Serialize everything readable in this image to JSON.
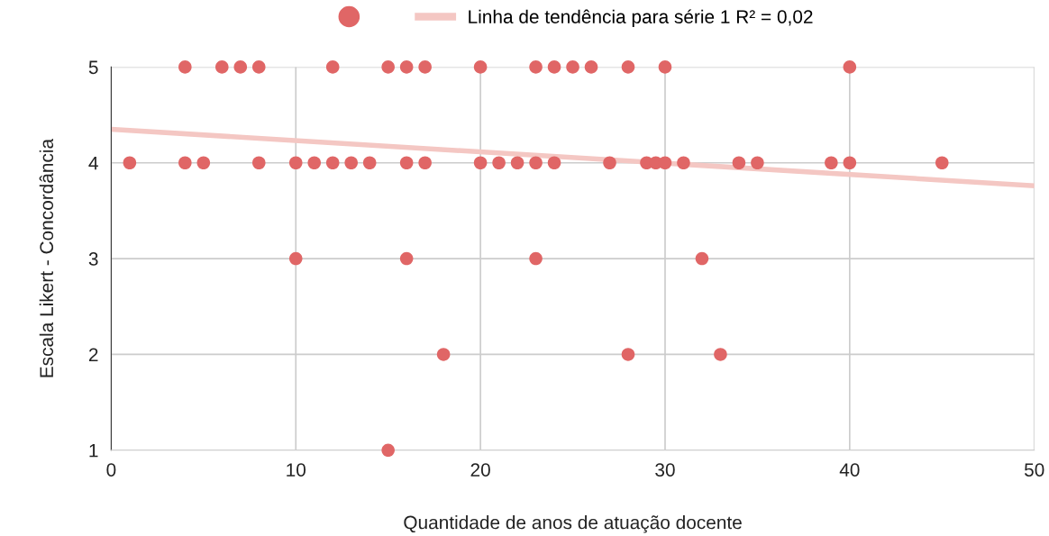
{
  "chart_data": {
    "type": "scatter",
    "xlabel": "Quantidade de anos de atuação docente",
    "ylabel": "Escala Likert - Concordância",
    "series": [
      {
        "color": "#e06666",
        "marker": "circle",
        "x": [
          4,
          6,
          7,
          8,
          12,
          15,
          16,
          17,
          20,
          23,
          24,
          25,
          26,
          28,
          30,
          40,
          1,
          4,
          5,
          8,
          10,
          11,
          12,
          13,
          14,
          16,
          17,
          20,
          21,
          22,
          23,
          24,
          27,
          29,
          29.5,
          30,
          31,
          34,
          35,
          39,
          40,
          45,
          10,
          16,
          23,
          32,
          18,
          28,
          33,
          15
        ],
        "values": [
          5,
          5,
          5,
          5,
          5,
          5,
          5,
          5,
          5,
          5,
          5,
          5,
          5,
          5,
          5,
          5,
          4,
          4,
          4,
          4,
          4,
          4,
          4,
          4,
          4,
          4,
          4,
          4,
          4,
          4,
          4,
          4,
          4,
          4,
          4,
          4,
          4,
          4,
          4,
          4,
          4,
          4,
          3,
          3,
          3,
          3,
          2,
          2,
          2,
          1
        ]
      },
      {
        "type": "line",
        "name": "Linha de tendência para série 1 R² = 0,02",
        "color": "#f4c7c3",
        "x": [
          0,
          50
        ],
        "values": [
          4.35,
          3.76
        ]
      }
    ],
    "xlim": [
      0,
      50
    ],
    "xticks": [
      0,
      10,
      20,
      30,
      40,
      50
    ],
    "ylim": [
      1,
      5
    ],
    "yticks": [
      1,
      2,
      3,
      4,
      5
    ],
    "grid": true,
    "legend": "top"
  }
}
